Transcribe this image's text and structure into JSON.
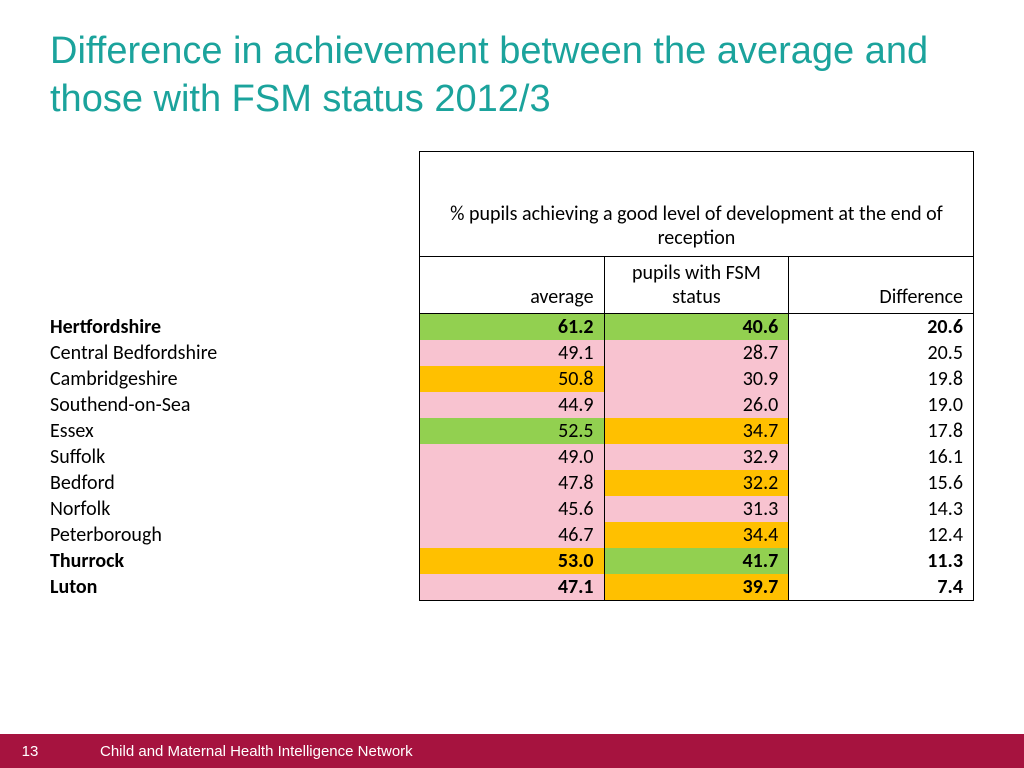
{
  "title": "Difference in achievement between the average and those with FSM status 2012/3",
  "table": {
    "super_header": "% pupils achieving a good level of development at the end of reception",
    "columns": {
      "c1": "average",
      "c2": "pupils with FSM status",
      "c3": "Difference"
    },
    "colors": {
      "green": "#92d050",
      "amber": "#ffc000",
      "pink": "#f8c3d0",
      "white": "#ffffff"
    },
    "rows": [
      {
        "region": "Hertfordshire",
        "avg": "61.2",
        "fsm": "40.6",
        "diff": "20.6",
        "avg_bg": "green",
        "fsm_bg": "green",
        "bold": true
      },
      {
        "region": "Central Bedfordshire",
        "avg": "49.1",
        "fsm": "28.7",
        "diff": "20.5",
        "avg_bg": "pink",
        "fsm_bg": "pink",
        "bold": false
      },
      {
        "region": "Cambridgeshire",
        "avg": "50.8",
        "fsm": "30.9",
        "diff": "19.8",
        "avg_bg": "amber",
        "fsm_bg": "pink",
        "bold": false
      },
      {
        "region": "Southend-on-Sea",
        "avg": "44.9",
        "fsm": "26.0",
        "diff": "19.0",
        "avg_bg": "pink",
        "fsm_bg": "pink",
        "bold": false
      },
      {
        "region": "Essex",
        "avg": "52.5",
        "fsm": "34.7",
        "diff": "17.8",
        "avg_bg": "green",
        "fsm_bg": "amber",
        "bold": false
      },
      {
        "region": "Suffolk",
        "avg": "49.0",
        "fsm": "32.9",
        "diff": "16.1",
        "avg_bg": "pink",
        "fsm_bg": "pink",
        "bold": false
      },
      {
        "region": "Bedford",
        "avg": "47.8",
        "fsm": "32.2",
        "diff": "15.6",
        "avg_bg": "pink",
        "fsm_bg": "amber",
        "bold": false
      },
      {
        "region": "Norfolk",
        "avg": "45.6",
        "fsm": "31.3",
        "diff": "14.3",
        "avg_bg": "pink",
        "fsm_bg": "pink",
        "bold": false
      },
      {
        "region": "Peterborough",
        "avg": "46.7",
        "fsm": "34.4",
        "diff": "12.4",
        "avg_bg": "pink",
        "fsm_bg": "amber",
        "bold": false
      },
      {
        "region": "Thurrock",
        "avg": "53.0",
        "fsm": "41.7",
        "diff": "11.3",
        "avg_bg": "amber",
        "fsm_bg": "green",
        "bold": true
      },
      {
        "region": "Luton",
        "avg": "47.1",
        "fsm": "39.7",
        "diff": "7.4",
        "avg_bg": "pink",
        "fsm_bg": "amber",
        "bold": true
      }
    ]
  },
  "footer": {
    "page": "13",
    "text": "Child and Maternal Health Intelligence Network"
  }
}
